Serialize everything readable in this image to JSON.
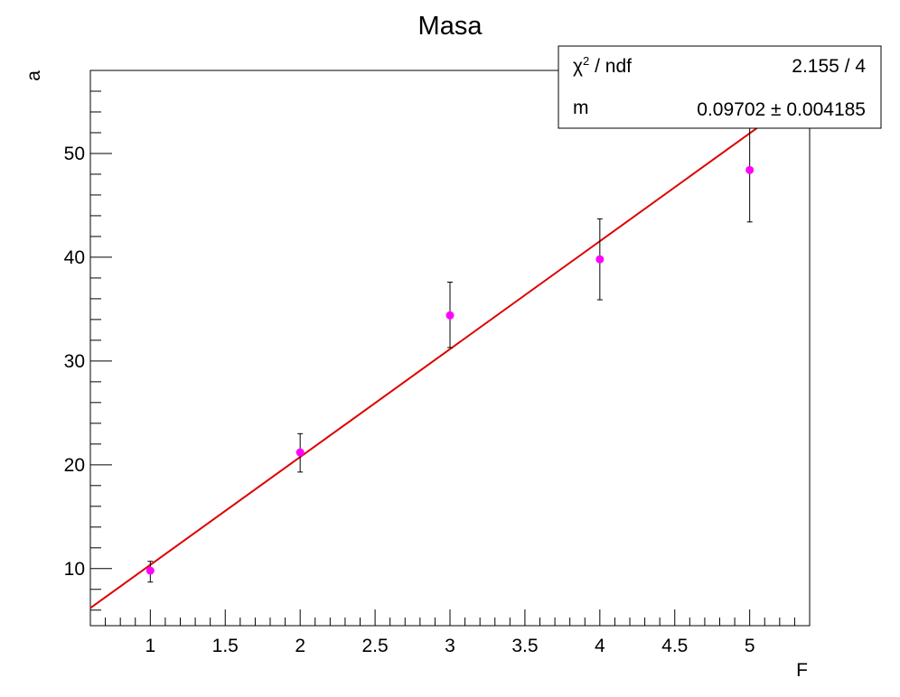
{
  "chart_data": {
    "type": "scatter",
    "title": "Masa",
    "xlabel": "F",
    "ylabel": "a",
    "xlim": [
      0.6,
      5.4
    ],
    "ylim": [
      4.5,
      58
    ],
    "x_major_ticks": [
      1,
      1.5,
      2,
      2.5,
      3,
      3.5,
      4,
      4.5,
      5
    ],
    "x_tick_labels": [
      "1",
      "1.5",
      "2",
      "2.5",
      "3",
      "3.5",
      "4",
      "4.5",
      "5"
    ],
    "y_major_ticks": [
      10,
      20,
      30,
      40,
      50
    ],
    "y_tick_labels": [
      "10",
      "20",
      "30",
      "40",
      "50"
    ],
    "series": [
      {
        "marker_color": "#ff00ff",
        "points": [
          {
            "x": 1,
            "y": 9.8,
            "yerr_low": 1.1,
            "yerr_high": 0.9
          },
          {
            "x": 2,
            "y": 21.2,
            "yerr_low": 1.9,
            "yerr_high": 1.8
          },
          {
            "x": 3,
            "y": 34.4,
            "yerr_low": 3.1,
            "yerr_high": 3.2
          },
          {
            "x": 4,
            "y": 39.8,
            "yerr_low": 3.9,
            "yerr_high": 3.9
          },
          {
            "x": 5,
            "y": 48.4,
            "yerr_low": 5.0,
            "yerr_high": 5.0
          }
        ]
      }
    ],
    "fit": {
      "type": "line",
      "color": "#dd0000",
      "x_range": [
        0.6,
        5.4
      ],
      "y_values": [
        6.2,
        56.1
      ]
    },
    "stats_box": {
      "placement": "top-right",
      "rows": [
        {
          "label_main": "χ",
          "label_sup": "2",
          "label_rest": " / ndf",
          "value": "2.155 / 4"
        },
        {
          "label_main": "m",
          "label_sup": "",
          "label_rest": "",
          "value": "0.09702 ± 0.004185"
        }
      ]
    },
    "grid": false
  }
}
